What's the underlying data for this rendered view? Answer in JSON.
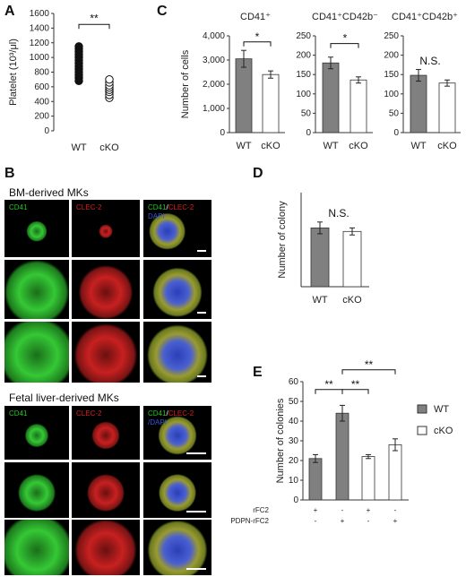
{
  "panels": {
    "A": "A",
    "B": "B",
    "C": "C",
    "D": "D",
    "E": "E"
  },
  "colors": {
    "wt_bar": "#808080",
    "ko_bar": "#ffffff",
    "green": "#22c522",
    "red": "#d42020",
    "blue": "#3a58d8"
  },
  "chart_data": [
    {
      "id": "A",
      "type": "scatter",
      "ylabel": "Platelet (10³/μl)",
      "ylim": [
        0,
        1600
      ],
      "yticks": [
        "0",
        "200",
        "400",
        "600",
        "800",
        "1000",
        "1200",
        "1400",
        "1600"
      ],
      "categories": [
        "WT",
        "cKO"
      ],
      "series": [
        {
          "name": "WT",
          "filled": true,
          "values": [
            680,
            720,
            760,
            800,
            840,
            880,
            920,
            960,
            1000,
            1040,
            1080,
            1120,
            1150
          ]
        },
        {
          "name": "cKO",
          "filled": false,
          "values": [
            450,
            490,
            530,
            560,
            590,
            620,
            660,
            700
          ]
        }
      ],
      "significance": "**"
    },
    {
      "id": "C1",
      "type": "bar",
      "title": "CD41⁺",
      "ylabel": "Number of cells",
      "ylim": [
        0,
        4000
      ],
      "yticks": [
        "0",
        "1,000",
        "2,000",
        "3,000",
        "4,000"
      ],
      "categories": [
        "WT",
        "cKO"
      ],
      "values": [
        3050,
        2400
      ],
      "errors": [
        350,
        150
      ],
      "significance": "*"
    },
    {
      "id": "C2",
      "type": "bar",
      "title": "CD41⁺CD42b⁻",
      "ylim": [
        0,
        250
      ],
      "yticks": [
        "0",
        "50",
        "100",
        "150",
        "200",
        "250"
      ],
      "categories": [
        "WT",
        "cKO"
      ],
      "values": [
        180,
        136
      ],
      "errors": [
        15,
        8
      ],
      "significance": "*"
    },
    {
      "id": "C3",
      "type": "bar",
      "title": "CD41⁺CD42b⁺",
      "ylim": [
        0,
        250
      ],
      "yticks": [
        "0",
        "50",
        "100",
        "150",
        "200",
        "250"
      ],
      "categories": [
        "WT",
        "cKO"
      ],
      "values": [
        148,
        128
      ],
      "errors": [
        15,
        8
      ],
      "significance": "N.S."
    },
    {
      "id": "D",
      "type": "bar",
      "ylabel": "Number of colony",
      "ylim": [
        0,
        80
      ],
      "categories": [
        "WT",
        "cKO"
      ],
      "values": [
        50,
        47
      ],
      "errors": [
        5,
        3
      ],
      "significance": "N.S."
    },
    {
      "id": "E",
      "type": "bar",
      "ylabel": "Number of colonies",
      "ylim": [
        0,
        60
      ],
      "yticks": [
        "0",
        "10",
        "20",
        "30",
        "40",
        "50",
        "60"
      ],
      "categories": [
        "1",
        "2",
        "3",
        "4"
      ],
      "series_of_bar": [
        "WT",
        "WT",
        "cKO",
        "cKO"
      ],
      "values": [
        21,
        44,
        22,
        28
      ],
      "errors": [
        2,
        4,
        1,
        3
      ],
      "legend": [
        "WT",
        "cKO"
      ],
      "conditions": [
        {
          "label": "rFC2",
          "marks": [
            "+",
            "-",
            "+",
            "-"
          ]
        },
        {
          "label": "PDPN-rFC2",
          "marks": [
            "-",
            "+",
            "-",
            "+"
          ]
        }
      ],
      "significance": [
        "**",
        "**",
        "**"
      ]
    }
  ],
  "microscopy": {
    "bm_title": "BM-derived MKs",
    "fl_title": "Fetal liver-derived MKs",
    "col1": "CD41",
    "col2": "CLEC-2",
    "col3a": "CD41",
    "col3sep": "/",
    "col3b": "CLEC-2",
    "col3c": "DAPI",
    "col3sep2": "/DAPI"
  }
}
